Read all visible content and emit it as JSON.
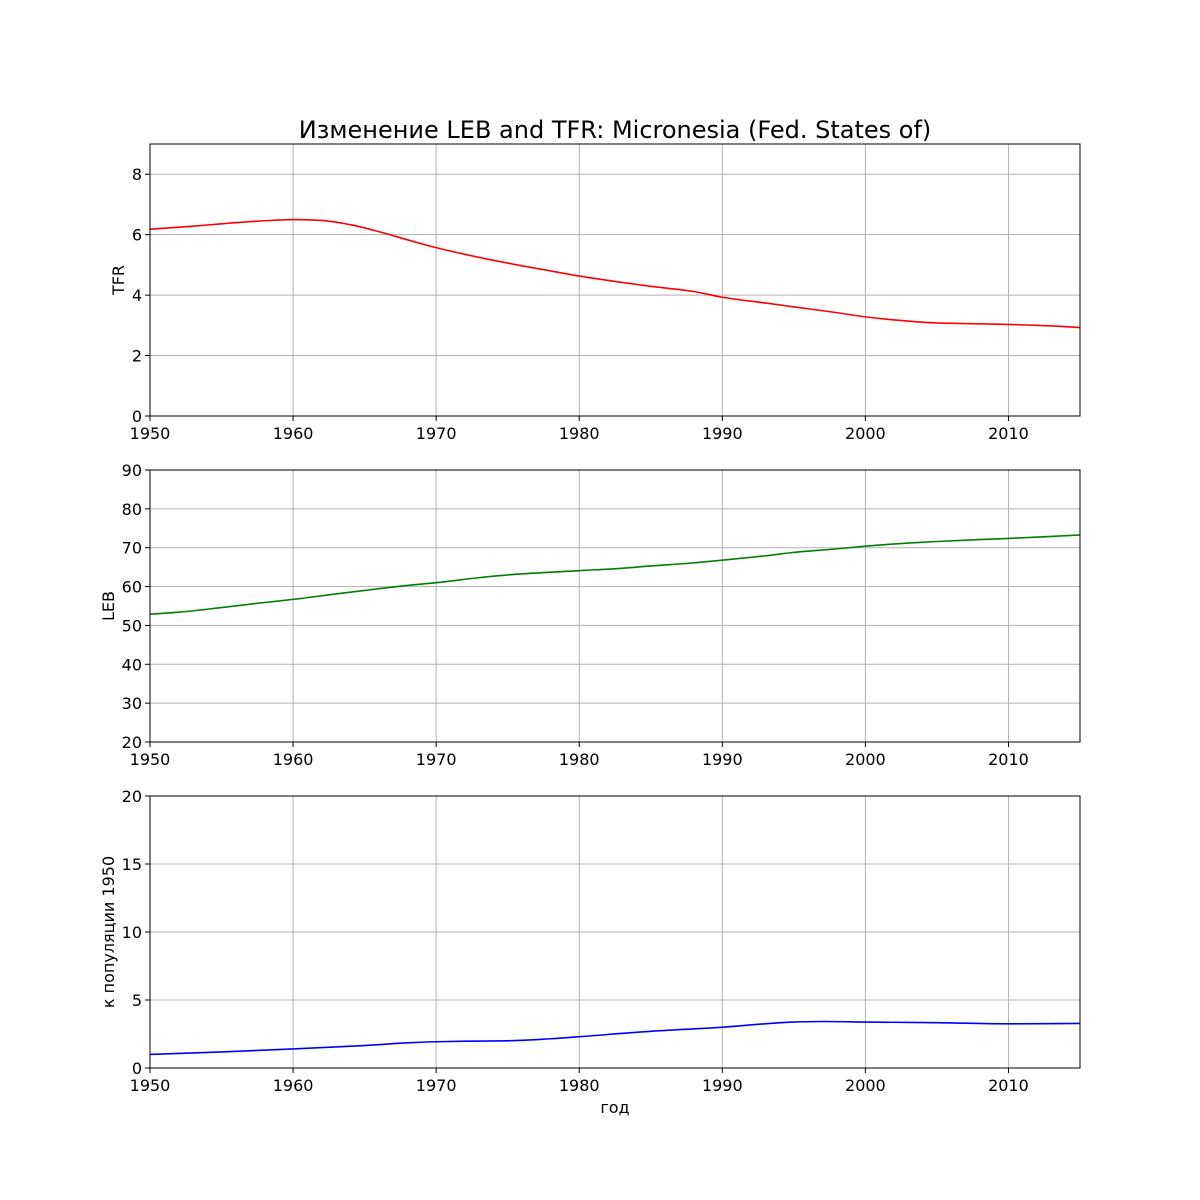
{
  "chart_data": [
    {
      "type": "line",
      "title": "Изменение LEB and TFR: Micronesia (Fed. States of)",
      "xlabel": "",
      "ylabel": "TFR",
      "xlim": [
        1950,
        2015
      ],
      "ylim": [
        0,
        9
      ],
      "xticks": [
        1950,
        1960,
        1970,
        1980,
        1990,
        2000,
        2010
      ],
      "yticks": [
        0,
        2,
        4,
        6,
        8
      ],
      "grid": true,
      "color": "#ff0000",
      "series": [
        {
          "x": [
            1950,
            1953,
            1955,
            1958,
            1960,
            1962,
            1964,
            1966,
            1968,
            1970,
            1972,
            1975,
            1978,
            1980,
            1983,
            1985,
            1988,
            1990,
            1993,
            1995,
            1998,
            2000,
            2003,
            2005,
            2008,
            2010,
            2013,
            2015
          ],
          "values": [
            6.18,
            6.28,
            6.36,
            6.46,
            6.5,
            6.47,
            6.33,
            6.1,
            5.83,
            5.57,
            5.35,
            5.06,
            4.8,
            4.63,
            4.42,
            4.29,
            4.12,
            3.93,
            3.74,
            3.61,
            3.42,
            3.28,
            3.14,
            3.08,
            3.05,
            3.03,
            2.98,
            2.93
          ]
        }
      ]
    },
    {
      "type": "line",
      "title": "",
      "xlabel": "",
      "ylabel": "LEB",
      "xlim": [
        1950,
        2015
      ],
      "ylim": [
        20,
        90
      ],
      "xticks": [
        1950,
        1960,
        1970,
        1980,
        1990,
        2000,
        2010
      ],
      "yticks": [
        20,
        30,
        40,
        50,
        60,
        70,
        80,
        90
      ],
      "grid": true,
      "color": "#008000",
      "series": [
        {
          "x": [
            1950,
            1952,
            1955,
            1958,
            1960,
            1963,
            1965,
            1968,
            1970,
            1973,
            1975,
            1978,
            1980,
            1983,
            1985,
            1988,
            1990,
            1993,
            1995,
            1998,
            2000,
            2003,
            2005,
            2008,
            2010,
            2013,
            2015
          ],
          "values": [
            52.9,
            53.4,
            54.6,
            55.9,
            56.7,
            58.1,
            59.0,
            60.3,
            61.0,
            62.3,
            63.0,
            63.7,
            64.1,
            64.7,
            65.3,
            66.1,
            66.8,
            67.9,
            68.8,
            69.7,
            70.4,
            71.2,
            71.6,
            72.1,
            72.4,
            72.9,
            73.3
          ]
        }
      ]
    },
    {
      "type": "line",
      "title": "",
      "xlabel": "год",
      "ylabel": "к популяции 1950",
      "xlim": [
        1950,
        2015
      ],
      "ylim": [
        0,
        20
      ],
      "xticks": [
        1950,
        1960,
        1970,
        1980,
        1990,
        2000,
        2010
      ],
      "yticks": [
        0,
        5,
        10,
        15,
        20
      ],
      "grid": true,
      "color": "#0000ff",
      "series": [
        {
          "x": [
            1950,
            1955,
            1960,
            1965,
            1968,
            1970,
            1972,
            1975,
            1978,
            1980,
            1985,
            1990,
            1993,
            1995,
            1997,
            2000,
            2005,
            2010,
            2015
          ],
          "values": [
            1.0,
            1.18,
            1.4,
            1.65,
            1.85,
            1.93,
            1.97,
            2.0,
            2.15,
            2.3,
            2.7,
            3.0,
            3.25,
            3.38,
            3.42,
            3.38,
            3.33,
            3.25,
            3.28
          ]
        }
      ]
    }
  ]
}
